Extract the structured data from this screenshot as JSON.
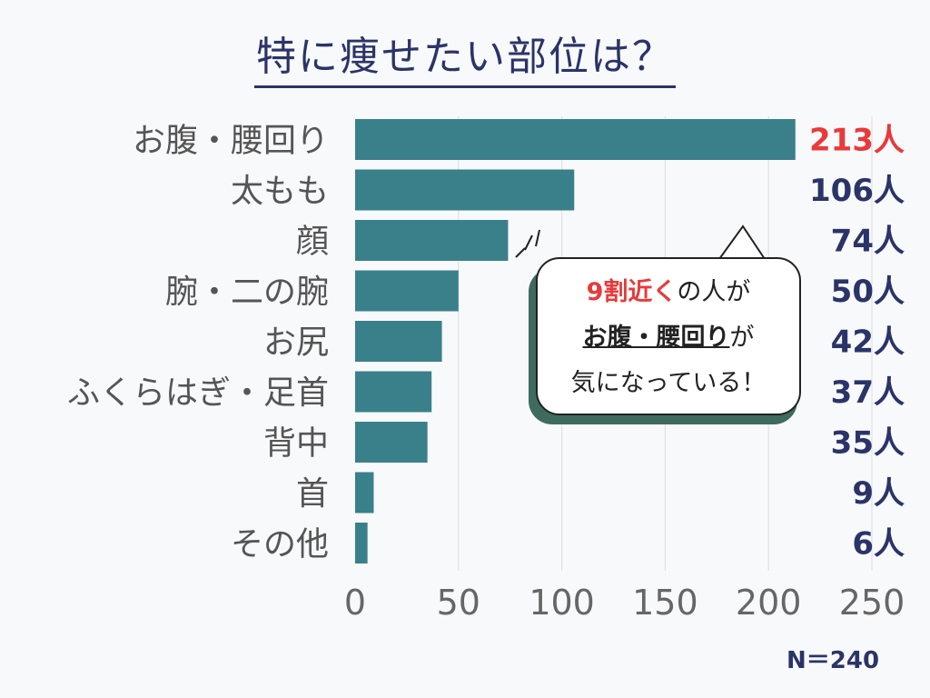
{
  "title": "特に痩せたい部位は？",
  "sample": "N＝240",
  "colors": {
    "bar": "#3a808b",
    "value_default": "#2a3468",
    "value_highlight": "#e83a3a",
    "grid": "#dddddd"
  },
  "callout": {
    "line1_highlight": "9割近く",
    "line1_rest": "の人が",
    "line2_highlight": "お腹・腰回り",
    "line2_rest": "が",
    "line3": "気になっている！"
  },
  "chart_data": {
    "type": "bar",
    "orientation": "horizontal",
    "title": "特に痩せたい部位は？",
    "categories": [
      "お腹・腰回り",
      "太もも",
      "顔",
      "腕・二の腕",
      "お尻",
      "ふくらはぎ・足首",
      "背中",
      "首",
      "その他"
    ],
    "values": [
      213,
      106,
      74,
      50,
      42,
      37,
      35,
      9,
      6
    ],
    "value_labels": [
      "213人",
      "106人",
      "74人",
      "50人",
      "42人",
      "37人",
      "35人",
      "9人",
      "6人"
    ],
    "xlim": [
      0,
      250
    ],
    "xticks": [
      "0",
      "50",
      "100",
      "150",
      "200",
      "250"
    ],
    "grid": true,
    "highlight_index": 0
  }
}
